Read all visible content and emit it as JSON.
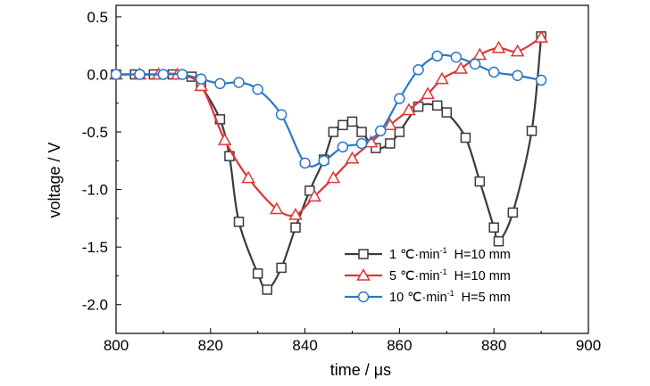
{
  "chart_data": {
    "type": "line",
    "title": "",
    "xlabel": "time / μs",
    "ylabel": "voltage / V",
    "xlim": [
      800,
      900
    ],
    "ylim": [
      -2.25,
      0.6
    ],
    "xticks": [
      800,
      820,
      840,
      860,
      880,
      900
    ],
    "xtick_labels": [
      "800",
      "820",
      "840",
      "860",
      "880",
      "900"
    ],
    "yticks": [
      0.5,
      0.0,
      -0.5,
      -1.0,
      -1.5,
      -2.0
    ],
    "ytick_labels": [
      "0.5",
      "0.0",
      "-0.5",
      "-1.0",
      "-1.5",
      "-2.0"
    ],
    "grid": false,
    "legend_position": "bottom-right",
    "series": [
      {
        "name": "1 ℃·min-1 H=10 mm",
        "legend": {
          "lead": "1 ℃·min",
          "sup": "-1",
          "tail": "H=10 mm"
        },
        "color": "#3a3a3a",
        "marker": "square",
        "x": [
          800,
          804,
          808,
          812,
          816,
          818,
          822,
          824,
          826,
          830,
          832,
          835,
          838,
          841,
          844,
          846,
          848,
          850,
          852,
          855,
          858,
          860,
          864,
          868,
          870,
          874,
          877,
          880,
          881,
          884,
          888,
          890
        ],
        "y": [
          0.0,
          0.0,
          0.0,
          0.0,
          -0.02,
          -0.1,
          -0.39,
          -0.71,
          -1.28,
          -1.73,
          -1.87,
          -1.68,
          -1.33,
          -1.01,
          -0.74,
          -0.5,
          -0.44,
          -0.41,
          -0.5,
          -0.64,
          -0.6,
          -0.5,
          -0.28,
          -0.27,
          -0.33,
          -0.55,
          -0.93,
          -1.33,
          -1.45,
          -1.2,
          -0.49,
          0.33
        ]
      },
      {
        "name": "5 ℃·min-1 H=10 mm",
        "legend": {
          "lead": "5 ℃·min",
          "sup": "-1",
          "tail": "H=10 mm"
        },
        "color": "#e03535",
        "marker": "triangle",
        "x": [
          800,
          805,
          809,
          813,
          818,
          823,
          828,
          834,
          838,
          842,
          846,
          850,
          854,
          858,
          862,
          866,
          869,
          873,
          877,
          881,
          885,
          890
        ],
        "y": [
          0.0,
          0.0,
          0.0,
          0.0,
          -0.1,
          -0.57,
          -0.9,
          -1.17,
          -1.22,
          -1.06,
          -0.9,
          -0.73,
          -0.59,
          -0.44,
          -0.31,
          -0.17,
          -0.04,
          0.05,
          0.17,
          0.23,
          0.2,
          0.32
        ]
      },
      {
        "name": "10 ℃·min-1 H=5 mm",
        "legend": {
          "lead": "10 ℃·min",
          "sup": "-1",
          "tail": "H=5 mm"
        },
        "color": "#2b76c8",
        "marker": "circle",
        "x": [
          800,
          805,
          810,
          814,
          818,
          822,
          826,
          830,
          835,
          840,
          844,
          848,
          852,
          856,
          860,
          864,
          868,
          872,
          876,
          880,
          885,
          890
        ],
        "y": [
          0.0,
          0.0,
          0.0,
          0.0,
          -0.04,
          -0.08,
          -0.07,
          -0.13,
          -0.35,
          -0.77,
          -0.75,
          -0.63,
          -0.6,
          -0.49,
          -0.21,
          0.04,
          0.16,
          0.15,
          0.09,
          0.02,
          -0.01,
          -0.05
        ]
      }
    ]
  }
}
